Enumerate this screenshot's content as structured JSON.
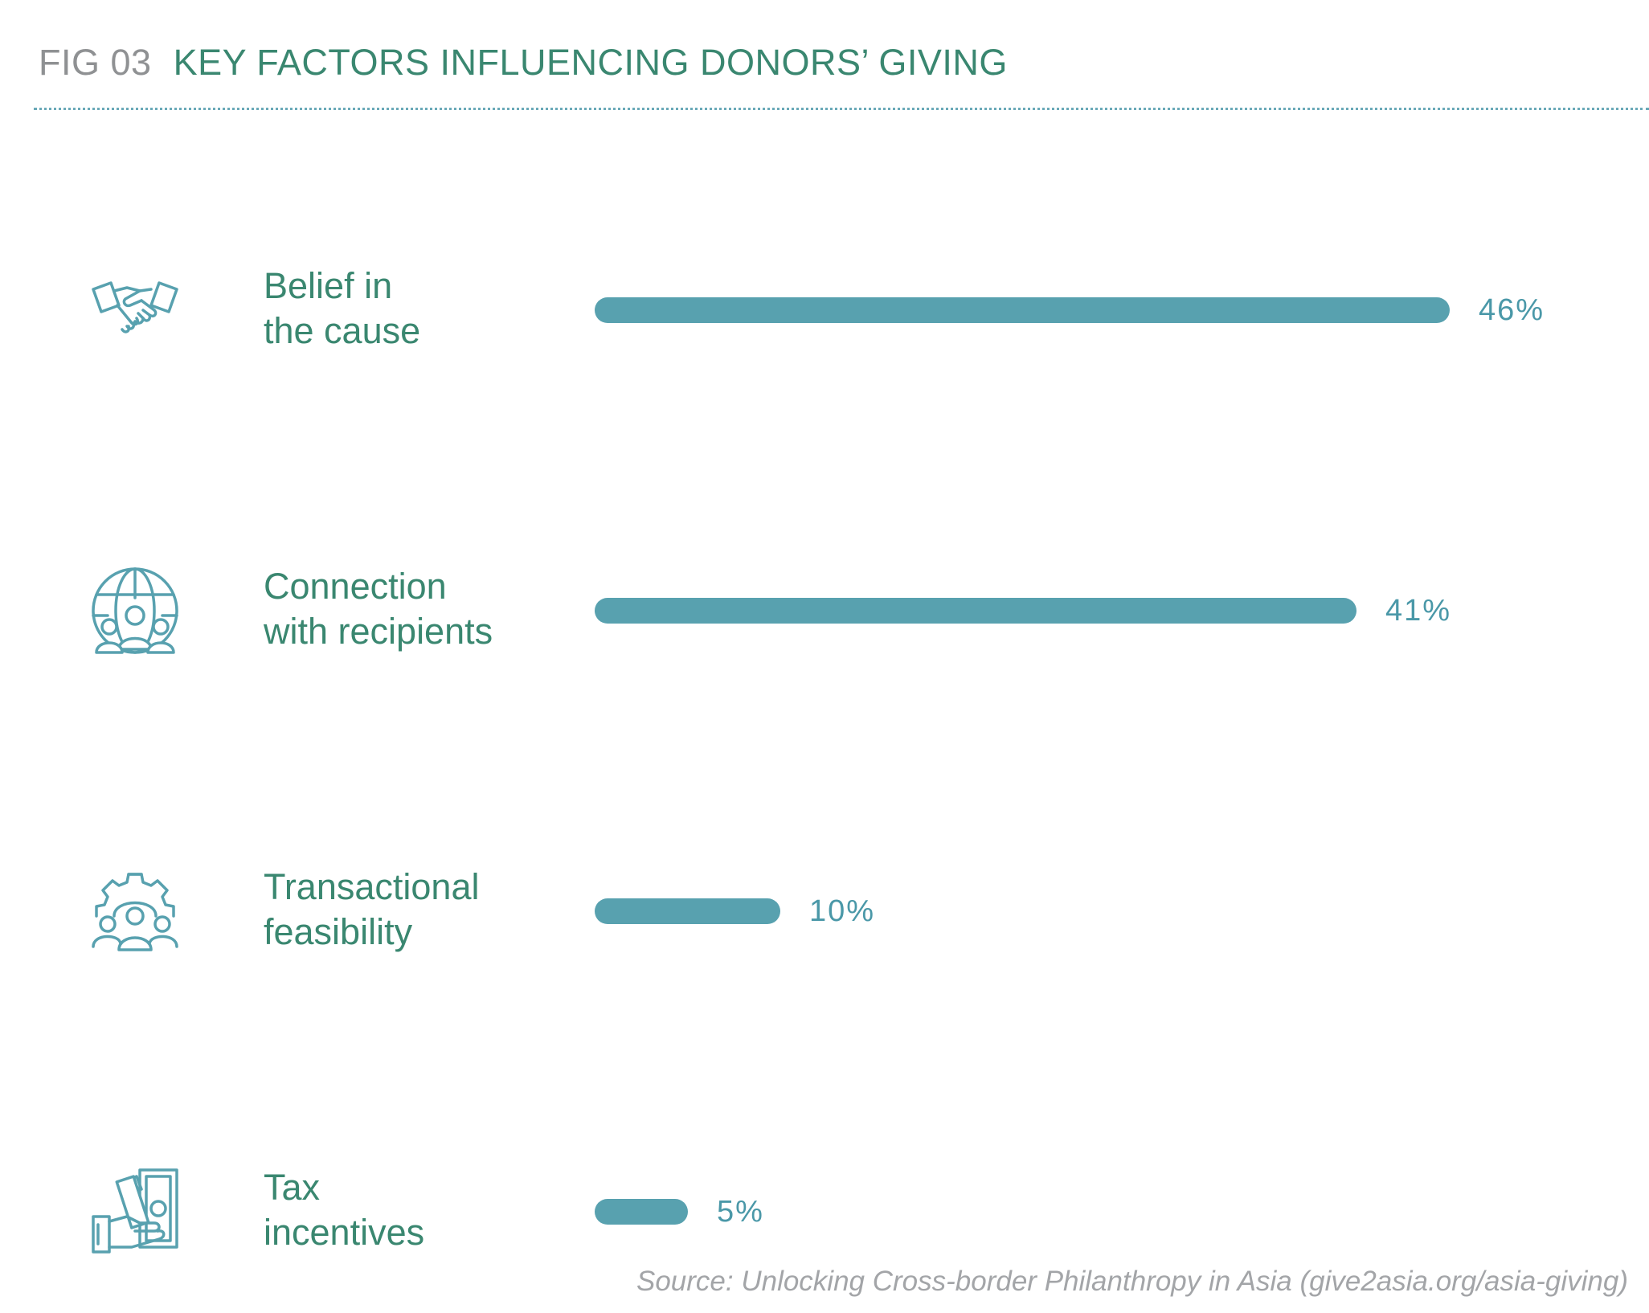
{
  "header": {
    "fig_number": "FIG 03",
    "title": "KEY FACTORS INFLUENCING DONORS’ GIVING"
  },
  "colors": {
    "bar": "#58a1af",
    "label": "#3a8770",
    "value": "#4a98a8",
    "fig_number": "#8f9193",
    "source": "#a3a5a8",
    "divider": "#6aa9b8"
  },
  "chart_data": {
    "type": "bar",
    "orientation": "horizontal",
    "categories": [
      "Belief in the cause",
      "Connection with recipients",
      "Transactional feasibility",
      "Tax incentives"
    ],
    "values": [
      46,
      41,
      10,
      5
    ],
    "unit": "%",
    "xlim": [
      0,
      46
    ],
    "grid": false,
    "legend": "none",
    "title": "KEY FACTORS INFLUENCING DONORS’ GIVING"
  },
  "rows": [
    {
      "label_lines": [
        "Belief in",
        "the cause"
      ],
      "value": 46,
      "value_label": "46%",
      "icon": "handshake-icon"
    },
    {
      "label_lines": [
        "Connection",
        "with recipients"
      ],
      "value": 41,
      "value_label": "41%",
      "icon": "globe-people-icon"
    },
    {
      "label_lines": [
        "Transactional",
        "feasibility"
      ],
      "value": 10,
      "value_label": "10%",
      "icon": "gear-people-icon"
    },
    {
      "label_lines": [
        "Tax",
        "incentives"
      ],
      "value": 5,
      "value_label": "5%",
      "icon": "money-hand-icon"
    }
  ],
  "source": "Source: Unlocking Cross-border Philanthropy in Asia (give2asia.org/asia-giving)"
}
